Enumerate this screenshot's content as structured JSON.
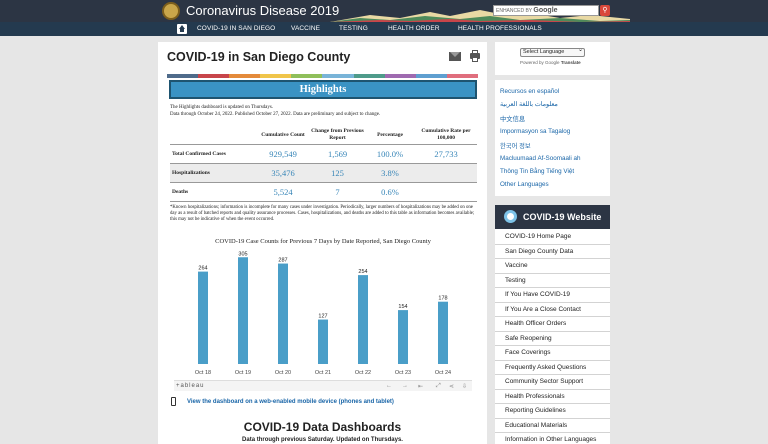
{
  "header": {
    "site_title": "Coronavirus Disease 2019",
    "search_placeholder_prefix": "ENHANCED BY",
    "search_placeholder_brand": "Google",
    "search_icon": "magnifier-icon"
  },
  "nav": {
    "home_icon": "home-icon",
    "items": [
      "COVID-19 IN SAN DIEGO",
      "VACCINE",
      "TESTING",
      "HEALTH ORDER",
      "HEALTH PROFESSIONALS"
    ]
  },
  "main": {
    "title": "COVID-19 in San Diego County",
    "stripe_colors": [
      "#4f6b8a",
      "#c8454a",
      "#e48a3a",
      "#f0c54a",
      "#8fbf5a",
      "#79b4d8",
      "#4e9b8a",
      "#9f6ab0",
      "#5f9fd0",
      "#e06e7d"
    ],
    "banner": "Highlights",
    "note_line1": "The Highlights dashboard is updated on Thursdays.",
    "note_line2": "Data through October 24, 2022. Published October 27, 2022. Data are preliminary and subject to change.",
    "table": {
      "headers": [
        "",
        "Cumulative Count",
        "Change from Previous Report",
        "Percentage",
        "Cumulative Rate per 100,000"
      ],
      "rows": [
        [
          "Total Confirmed Cases",
          "929,549",
          "1,569",
          "100.0%",
          "27,733"
        ],
        [
          "Hospitalizations",
          "35,476",
          "125",
          "3.8%",
          ""
        ],
        [
          "Deaths",
          "5,524",
          "7",
          "0.6%",
          ""
        ]
      ]
    },
    "footnote": "*Known hospitalizations; information is incomplete for many cases under investigation. Periodically, larger numbers of hospitalizations may be added on one day as a result of batched reports and quality assurance processes. Cases, hospitalizations, and deaths are added to this table as information becomes available; this may not be indicative of when the event occurred.",
    "tableau_logo": "+ableau",
    "mobile_link": "View the dashboard on a web-enabled mobile device (phones and tablet)",
    "section_heading": "COVID-19 Data Dashboards",
    "section_sub": "Data through previous Saturday. Updated on Thursdays."
  },
  "chart_data": {
    "type": "bar",
    "title": "COVID-19 Case Counts for Previous 7 Days by Date Reported, San Diego County",
    "categories": [
      "Oct 18",
      "Oct 19",
      "Oct 20",
      "Oct 21",
      "Oct 22",
      "Oct 23",
      "Oct 24"
    ],
    "values": [
      264,
      305,
      287,
      127,
      254,
      154,
      178
    ],
    "ylim": [
      0,
      320
    ],
    "bar_color": "#4a9ec8",
    "label_color": "#c0392b",
    "grid": false
  },
  "sidebar": {
    "language_select": "Select Language",
    "powered_by": "Powered by",
    "powered_google": "Google",
    "powered_translate": "Translate",
    "languages": [
      "Recursos en español",
      "معلومات باللغة العربية",
      "中文信息",
      "Impormasyon sa Tagalog",
      "한국어 정보",
      "Macluumaad Af-Soomaali ah",
      "Thông Tin Bằng Tiếng Việt",
      "Other Languages"
    ],
    "covid_heading": "COVID-19 Website",
    "covid_links": [
      "COVID-19 Home Page",
      "San Diego County Data",
      "Vaccine",
      "Testing",
      "If You Have COVID-19",
      "If You Are a Close Contact",
      "Health Officer Orders",
      "Safe Reopening",
      "Face Coverings",
      "Frequently Asked Questions",
      "Community Sector Support",
      "Health Professionals",
      "Reporting Guidelines",
      "Educational Materials",
      "Information in Other Languages"
    ]
  }
}
